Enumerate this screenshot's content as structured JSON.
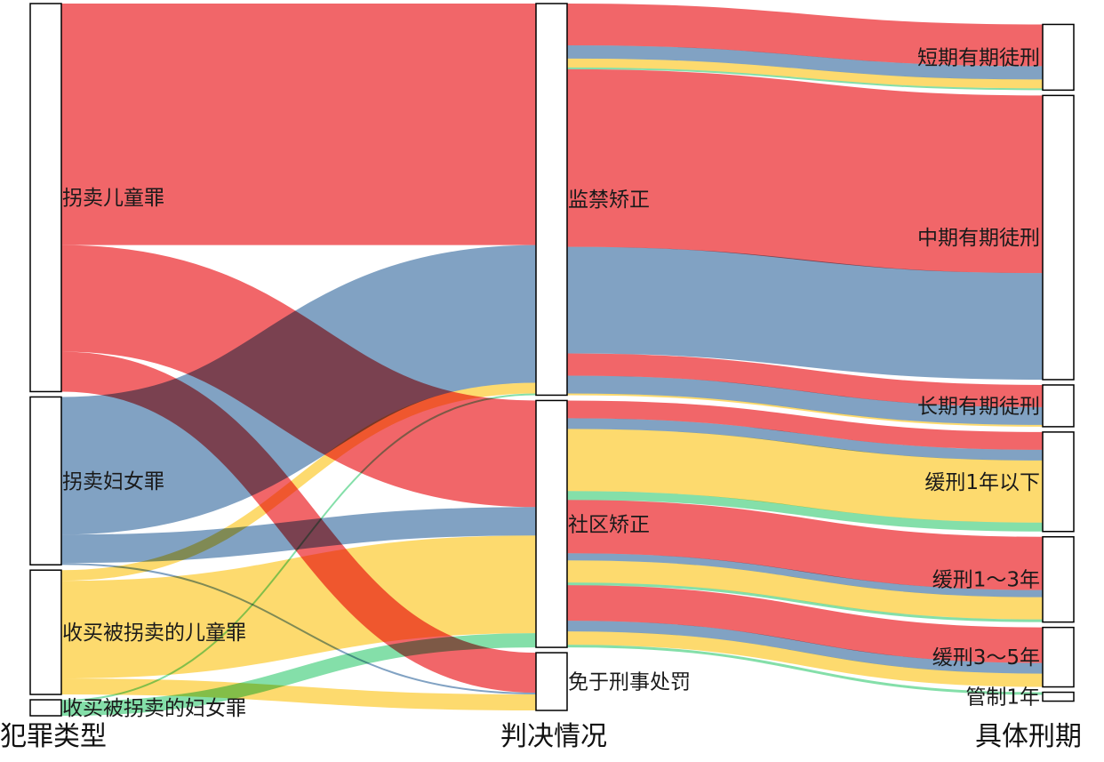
{
  "column_titles": [
    "犯罪类型",
    "判决情况",
    "具体刑期"
  ],
  "colors": {
    "拐卖儿童罪": "#ef4b4f",
    "拐卖妇女罪": "#6b92b8",
    "收买被拐卖的儿童罪": "#fdd355",
    "收买被拐卖的妇女罪": "#6fd99a",
    "node_fill": "#ffffff",
    "node_stroke": "#000000"
  },
  "nodes": [
    {
      "id": "拐卖儿童罪",
      "column": 0
    },
    {
      "id": "拐卖妇女罪",
      "column": 0
    },
    {
      "id": "收买被拐卖的儿童罪",
      "column": 0
    },
    {
      "id": "收买被拐卖的妇女罪",
      "column": 0
    },
    {
      "id": "监禁矫正",
      "column": 1
    },
    {
      "id": "社区矫正",
      "column": 1
    },
    {
      "id": "免于刑事处罚",
      "column": 1
    },
    {
      "id": "短期有期徒刑",
      "column": 2
    },
    {
      "id": "中期有期徒刑",
      "column": 2
    },
    {
      "id": "长期有期徒刑",
      "column": 2
    },
    {
      "id": "缓刑1年以下",
      "column": 2
    },
    {
      "id": "缓刑1～3年",
      "column": 2
    },
    {
      "id": "缓刑3～5年",
      "column": 2
    },
    {
      "id": "管制1年",
      "column": 2
    }
  ],
  "links": [
    {
      "source": "拐卖儿童罪",
      "target": "监禁矫正",
      "category": "拐卖儿童罪",
      "value": 272
    },
    {
      "source": "拐卖儿童罪",
      "target": "社区矫正",
      "category": "拐卖儿童罪",
      "value": 120
    },
    {
      "source": "拐卖儿童罪",
      "target": "免于刑事处罚",
      "category": "拐卖儿童罪",
      "value": 45
    },
    {
      "source": "拐卖妇女罪",
      "target": "监禁矫正",
      "category": "拐卖妇女罪",
      "value": 155
    },
    {
      "source": "拐卖妇女罪",
      "target": "社区矫正",
      "category": "拐卖妇女罪",
      "value": 32
    },
    {
      "source": "拐卖妇女罪",
      "target": "免于刑事处罚",
      "category": "拐卖妇女罪",
      "value": 2
    },
    {
      "source": "收买被拐卖的儿童罪",
      "target": "监禁矫正",
      "category": "收买被拐卖的儿童罪",
      "value": 12
    },
    {
      "source": "收买被拐卖的儿童罪",
      "target": "社区矫正",
      "category": "收买被拐卖的儿童罪",
      "value": 110
    },
    {
      "source": "收买被拐卖的儿童罪",
      "target": "免于刑事处罚",
      "category": "收买被拐卖的儿童罪",
      "value": 18
    },
    {
      "source": "收买被拐卖的妇女罪",
      "target": "监禁矫正",
      "category": "收买被拐卖的妇女罪",
      "value": 2
    },
    {
      "source": "收买被拐卖的妇女罪",
      "target": "社区矫正",
      "category": "收买被拐卖的妇女罪",
      "value": 16
    },
    {
      "source": "监禁矫正",
      "target": "短期有期徒刑",
      "category": "拐卖儿童罪",
      "value": 47
    },
    {
      "source": "监禁矫正",
      "target": "中期有期徒刑",
      "category": "拐卖儿童罪",
      "value": 200
    },
    {
      "source": "监禁矫正",
      "target": "长期有期徒刑",
      "category": "拐卖儿童罪",
      "value": 25
    },
    {
      "source": "监禁矫正",
      "target": "短期有期徒刑",
      "category": "拐卖妇女罪",
      "value": 15
    },
    {
      "source": "监禁矫正",
      "target": "中期有期徒刑",
      "category": "拐卖妇女罪",
      "value": 120
    },
    {
      "source": "监禁矫正",
      "target": "长期有期徒刑",
      "category": "拐卖妇女罪",
      "value": 20
    },
    {
      "source": "监禁矫正",
      "target": "短期有期徒刑",
      "category": "收买被拐卖的儿童罪",
      "value": 10
    },
    {
      "source": "监禁矫正",
      "target": "长期有期徒刑",
      "category": "收买被拐卖的儿童罪",
      "value": 2
    },
    {
      "source": "监禁矫正",
      "target": "短期有期徒刑",
      "category": "收买被拐卖的妇女罪",
      "value": 2
    },
    {
      "source": "社区矫正",
      "target": "缓刑1年以下",
      "category": "拐卖儿童罪",
      "value": 20
    },
    {
      "source": "社区矫正",
      "target": "缓刑1～3年",
      "category": "拐卖儿童罪",
      "value": 60
    },
    {
      "source": "社区矫正",
      "target": "缓刑3～5年",
      "category": "拐卖儿童罪",
      "value": 40
    },
    {
      "source": "社区矫正",
      "target": "缓刑1年以下",
      "category": "拐卖妇女罪",
      "value": 12
    },
    {
      "source": "社区矫正",
      "target": "缓刑1～3年",
      "category": "拐卖妇女罪",
      "value": 8
    },
    {
      "source": "社区矫正",
      "target": "缓刑3～5年",
      "category": "拐卖妇女罪",
      "value": 12
    },
    {
      "source": "社区矫正",
      "target": "缓刑1年以下",
      "category": "收买被拐卖的儿童罪",
      "value": 70
    },
    {
      "source": "社区矫正",
      "target": "缓刑1～3年",
      "category": "收买被拐卖的儿童罪",
      "value": 25
    },
    {
      "source": "社区矫正",
      "target": "缓刑3～5年",
      "category": "收买被拐卖的儿童罪",
      "value": 15
    },
    {
      "source": "社区矫正",
      "target": "缓刑1年以下",
      "category": "收买被拐卖的妇女罪",
      "value": 10
    },
    {
      "source": "社区矫正",
      "target": "缓刑1～3年",
      "category": "收买被拐卖的妇女罪",
      "value": 3
    },
    {
      "source": "社区矫正",
      "target": "管制1年",
      "category": "收买被拐卖的妇女罪",
      "value": 3
    }
  ]
}
